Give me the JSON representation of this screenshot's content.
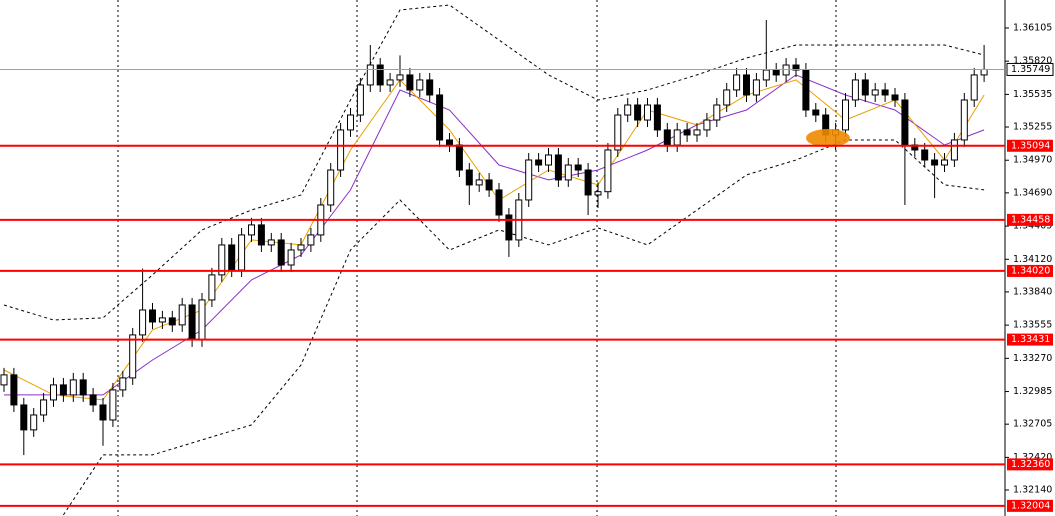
{
  "chart_data": {
    "type": "candlestick",
    "up_color": "#ffffff",
    "down_color": "#000000",
    "ohlc": [
      [
        1.33042,
        1.33188,
        1.32982,
        1.33128
      ],
      [
        1.33128,
        1.33188,
        1.3281,
        1.3287
      ],
      [
        1.3287,
        1.3293,
        1.3244,
        1.32656
      ],
      [
        1.32656,
        1.32844,
        1.32596,
        1.32784
      ],
      [
        1.32784,
        1.32973,
        1.32724,
        1.32913
      ],
      [
        1.32913,
        1.33102,
        1.32853,
        1.33042
      ],
      [
        1.33042,
        1.33102,
        1.32896,
        1.32956
      ],
      [
        1.32956,
        1.33145,
        1.32896,
        1.33085
      ],
      [
        1.33085,
        1.33145,
        1.32896,
        1.32956
      ],
      [
        1.32956,
        1.33016,
        1.3281,
        1.3287
      ],
      [
        1.3287,
        1.3293,
        1.3252,
        1.32741
      ],
      [
        1.32741,
        1.33059,
        1.32681,
        1.32999
      ],
      [
        1.32999,
        1.33162,
        1.32939,
        1.33102
      ],
      [
        1.33102,
        1.33531,
        1.33042,
        1.33471
      ],
      [
        1.33471,
        1.3404,
        1.33411,
        1.33685
      ],
      [
        1.33685,
        1.33745,
        1.33522,
        1.33582
      ],
      [
        1.33582,
        1.33677,
        1.33522,
        1.33617
      ],
      [
        1.33617,
        1.33677,
        1.33497,
        1.33557
      ],
      [
        1.33557,
        1.33788,
        1.33497,
        1.33728
      ],
      [
        1.33728,
        1.33788,
        1.33368,
        1.33428
      ],
      [
        1.33428,
        1.33831,
        1.33368,
        1.33771
      ],
      [
        1.33771,
        1.34046,
        1.33711,
        1.33986
      ],
      [
        1.33986,
        1.34303,
        1.33926,
        1.34243
      ],
      [
        1.34243,
        1.34303,
        1.33968,
        1.34028
      ],
      [
        1.34028,
        1.34389,
        1.33968,
        1.34329
      ],
      [
        1.34329,
        1.34475,
        1.34269,
        1.34415
      ],
      [
        1.34415,
        1.34475,
        1.34183,
        1.34243
      ],
      [
        1.34243,
        1.34346,
        1.34183,
        1.34286
      ],
      [
        1.34286,
        1.34346,
        1.34011,
        1.34071
      ],
      [
        1.34071,
        1.3426,
        1.34011,
        1.342
      ],
      [
        1.342,
        1.34303,
        1.3414,
        1.34243
      ],
      [
        1.34243,
        1.34389,
        1.34183,
        1.34329
      ],
      [
        1.34329,
        1.34646,
        1.34269,
        1.34586
      ],
      [
        1.34586,
        1.34946,
        1.34526,
        1.34886
      ],
      [
        1.34886,
        1.3529,
        1.34826,
        1.3523
      ],
      [
        1.3523,
        1.35418,
        1.3517,
        1.35358
      ],
      [
        1.35358,
        1.35676,
        1.35298,
        1.35616
      ],
      [
        1.35616,
        1.35959,
        1.35556,
        1.35787
      ],
      [
        1.35787,
        1.35847,
        1.35556,
        1.35616
      ],
      [
        1.35616,
        1.35719,
        1.35556,
        1.35659
      ],
      [
        1.35659,
        1.3587,
        1.35599,
        1.35702
      ],
      [
        1.35702,
        1.35762,
        1.35513,
        1.35573
      ],
      [
        1.35573,
        1.35719,
        1.35513,
        1.35659
      ],
      [
        1.35659,
        1.35719,
        1.3547,
        1.3553
      ],
      [
        1.3553,
        1.3559,
        1.35084,
        1.35144
      ],
      [
        1.35144,
        1.35204,
        1.35041,
        1.35101
      ],
      [
        1.35101,
        1.35161,
        1.34826,
        1.34886
      ],
      [
        1.34886,
        1.34946,
        1.34586,
        1.34758
      ],
      [
        1.34758,
        1.34861,
        1.34698,
        1.34801
      ],
      [
        1.34801,
        1.34861,
        1.34655,
        1.34715
      ],
      [
        1.34715,
        1.34775,
        1.3444,
        1.345
      ],
      [
        1.345,
        1.3456,
        1.3414,
        1.34286
      ],
      [
        1.34286,
        1.34689,
        1.34226,
        1.34629
      ],
      [
        1.34629,
        1.35032,
        1.34569,
        1.34972
      ],
      [
        1.34972,
        1.35032,
        1.34869,
        1.34929
      ],
      [
        1.34929,
        1.35075,
        1.34869,
        1.35015
      ],
      [
        1.35015,
        1.35075,
        1.34741,
        1.34801
      ],
      [
        1.34801,
        1.34989,
        1.34741,
        1.34929
      ],
      [
        1.34929,
        1.34989,
        1.34826,
        1.34886
      ],
      [
        1.34886,
        1.34946,
        1.345,
        1.34672
      ],
      [
        1.34672,
        1.3478,
        1.3456,
        1.347
      ],
      [
        1.347,
        1.35118,
        1.3464,
        1.35058
      ],
      [
        1.35058,
        1.35418,
        1.34998,
        1.35358
      ],
      [
        1.35358,
        1.35504,
        1.35298,
        1.35444
      ],
      [
        1.35444,
        1.35504,
        1.35255,
        1.35315
      ],
      [
        1.35315,
        1.35504,
        1.35255,
        1.35444
      ],
      [
        1.35444,
        1.35504,
        1.3517,
        1.3523
      ],
      [
        1.3523,
        1.3529,
        1.35041,
        1.35101
      ],
      [
        1.35101,
        1.3529,
        1.35041,
        1.3523
      ],
      [
        1.3523,
        1.3529,
        1.35127,
        1.35187
      ],
      [
        1.35187,
        1.3529,
        1.35127,
        1.3523
      ],
      [
        1.3523,
        1.35375,
        1.3517,
        1.35315
      ],
      [
        1.35315,
        1.35504,
        1.35255,
        1.35444
      ],
      [
        1.35444,
        1.35633,
        1.35384,
        1.35573
      ],
      [
        1.35573,
        1.35762,
        1.35513,
        1.35702
      ],
      [
        1.35702,
        1.35762,
        1.3547,
        1.3553
      ],
      [
        1.3553,
        1.35719,
        1.3547,
        1.35659
      ],
      [
        1.35659,
        1.36173,
        1.35599,
        1.35744
      ],
      [
        1.35744,
        1.35804,
        1.35642,
        1.35702
      ],
      [
        1.35702,
        1.35847,
        1.35642,
        1.35787
      ],
      [
        1.35787,
        1.35847,
        1.35684,
        1.35744
      ],
      [
        1.35744,
        1.35804,
        1.35341,
        1.35401
      ],
      [
        1.35401,
        1.35461,
        1.35298,
        1.35358
      ],
      [
        1.35358,
        1.35418,
        1.35127,
        1.35187
      ],
      [
        1.35187,
        1.3529,
        1.35058,
        1.3523
      ],
      [
        1.3523,
        1.35547,
        1.3517,
        1.35487
      ],
      [
        1.35487,
        1.35719,
        1.35427,
        1.35659
      ],
      [
        1.35659,
        1.35719,
        1.3547,
        1.3553
      ],
      [
        1.3553,
        1.35633,
        1.3547,
        1.35573
      ],
      [
        1.35573,
        1.35633,
        1.3547,
        1.3553
      ],
      [
        1.3553,
        1.3559,
        1.35427,
        1.35487
      ],
      [
        1.35487,
        1.35547,
        1.34586,
        1.35101
      ],
      [
        1.35101,
        1.35161,
        1.34998,
        1.35058
      ],
      [
        1.35058,
        1.35118,
        1.34912,
        1.34972
      ],
      [
        1.34972,
        1.35032,
        1.34646,
        1.34929
      ],
      [
        1.34929,
        1.35032,
        1.34869,
        1.34972
      ],
      [
        1.34972,
        1.35204,
        1.34912,
        1.35144
      ],
      [
        1.35144,
        1.35547,
        1.35084,
        1.35487
      ],
      [
        1.35487,
        1.35762,
        1.35427,
        1.35702
      ],
      [
        1.35702,
        1.35959,
        1.35642,
        1.35749
      ]
    ],
    "line_x": [
      0,
      5,
      10,
      15,
      20,
      25,
      30,
      35,
      40,
      45,
      50,
      55,
      60,
      65,
      70,
      75,
      80,
      85,
      90,
      95,
      99
    ],
    "lines": [
      {
        "color": "#000000",
        "dashed": true,
        "values": [
          1.33728,
          1.33599,
          1.33617,
          1.33986,
          1.34372,
          1.34543,
          1.34672,
          1.35487,
          1.36259,
          1.36302,
          1.36002,
          1.35702,
          1.35487,
          1.35573,
          1.35702,
          1.35847,
          1.35959,
          1.35959,
          1.35959,
          1.35959,
          1.35873
        ]
      },
      {
        "color": "#000000",
        "dashed": true,
        "values": [
          null,
          1.31798,
          1.32441,
          1.32441,
          1.3257,
          1.32699,
          1.33213,
          1.342,
          1.34629,
          1.342,
          1.34372,
          1.34243,
          1.34389,
          1.34243,
          1.34543,
          1.34844,
          1.34972,
          1.35144,
          1.35144,
          1.34758,
          1.34715
        ]
      },
      {
        "color": "#8b2fc9",
        "dashed": false,
        "values": [
          1.32956,
          1.32956,
          1.32956,
          1.33256,
          1.33514,
          1.33943,
          1.34157,
          1.34715,
          1.35573,
          1.35401,
          1.34929,
          1.34801,
          1.34886,
          1.35058,
          1.35273,
          1.35401,
          1.35702,
          1.3553,
          1.35401,
          1.35101,
          1.3523
        ]
      },
      {
        "color": "#e8a000",
        "dashed": false,
        "values": [
          1.3317,
          1.32956,
          1.32913,
          1.33514,
          1.33685,
          1.34286,
          1.34243,
          1.35058,
          1.35659,
          1.3523,
          1.34629,
          1.34886,
          1.34758,
          1.35401,
          1.35273,
          1.3553,
          1.35659,
          1.35315,
          1.35487,
          1.34972,
          1.3553
        ]
      }
    ],
    "ylim": [
      1.31917,
      1.36345
    ],
    "yticks": [
      1.36105,
      {
        "value": 1.3582,
        "label": "1.35820"
      },
      1.35535,
      1.35255,
      {
        "value": 1.3497,
        "label": "1.34970"
      },
      {
        "value": 1.3469,
        "label": "1.34690"
      },
      1.34405,
      {
        "value": 1.3412,
        "label": "1.34120"
      },
      {
        "value": 1.3384,
        "label": "1.33840"
      },
      1.33555,
      {
        "value": 1.3327,
        "label": "1.33270"
      },
      1.32985,
      1.32705,
      {
        "value": 1.3242,
        "label": "1.32420"
      },
      {
        "value": 1.3214,
        "label": "1.32140"
      }
    ],
    "level_color": "#ff0000",
    "levels": [
      1.35094,
      1.34458,
      {
        "value": 1.3402,
        "label": "1.34020"
      },
      1.33431,
      {
        "value": 1.3236,
        "label": "1.32360"
      },
      1.32004
    ],
    "last_price": 1.35749
  }
}
